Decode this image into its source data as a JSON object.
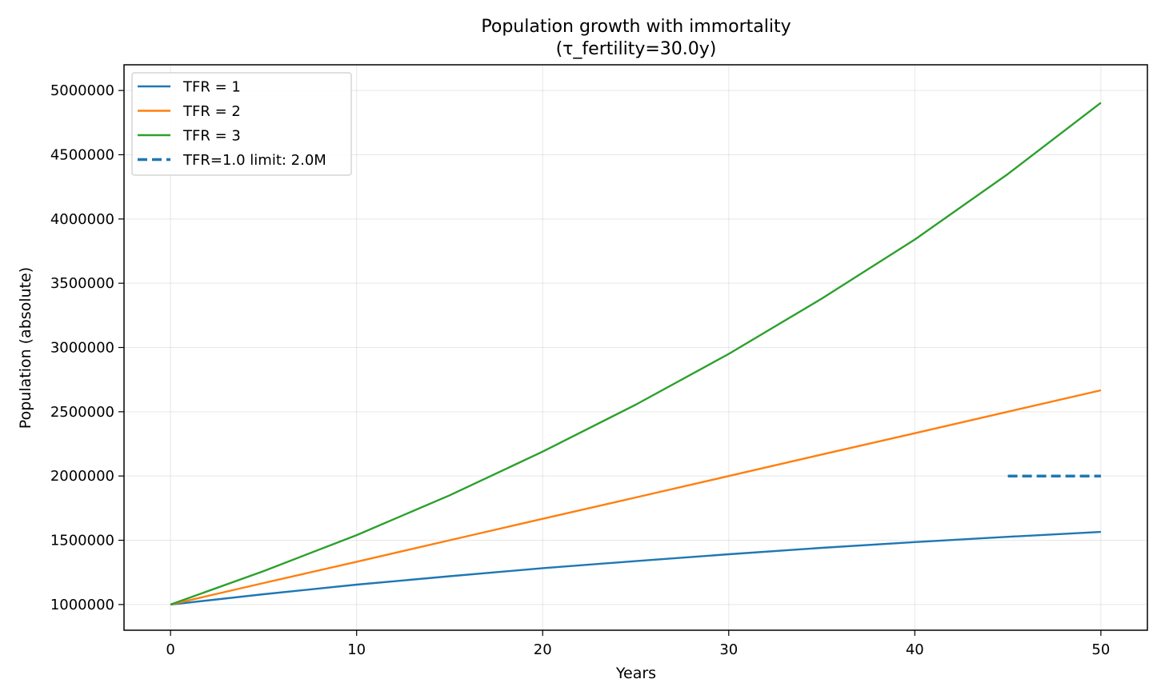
{
  "chart_data": {
    "type": "line",
    "title": "Population growth with immortality",
    "subtitle": "(τ_fertility=30.0y)",
    "xlabel": "Years",
    "ylabel": "Population (absolute)",
    "xlim": [
      -2.5,
      52.5
    ],
    "ylim": [
      800000,
      5200000
    ],
    "xticks": [
      0,
      10,
      20,
      30,
      40,
      50
    ],
    "xtick_labels": [
      "0",
      "10",
      "20",
      "30",
      "40",
      "50"
    ],
    "yticks": [
      1000000,
      1500000,
      2000000,
      2500000,
      3000000,
      3500000,
      4000000,
      4500000,
      5000000
    ],
    "ytick_labels": [
      "1000000",
      "1500000",
      "2000000",
      "2500000",
      "3000000",
      "3500000",
      "4000000",
      "4500000",
      "5000000"
    ],
    "grid": true,
    "legend_position": "top-left",
    "series": [
      {
        "name": "TFR = 1",
        "label": "TFR = 1",
        "color": "#1f77b4",
        "style": "solid",
        "x": [
          0,
          5,
          10,
          15,
          20,
          25,
          30,
          35,
          40,
          45,
          50
        ],
        "values": [
          1000000,
          1080000,
          1155000,
          1220000,
          1283000,
          1338000,
          1391000,
          1441000,
          1486000,
          1527000,
          1565000
        ]
      },
      {
        "name": "TFR = 2",
        "label": "TFR = 2",
        "color": "#ff7f0e",
        "style": "solid",
        "x": [
          0,
          5,
          10,
          15,
          20,
          25,
          30,
          35,
          40,
          45,
          50
        ],
        "values": [
          1000000,
          1167000,
          1333000,
          1500000,
          1667000,
          1833000,
          2000000,
          2167000,
          2333000,
          2500000,
          2667000
        ]
      },
      {
        "name": "TFR = 3",
        "label": "TFR = 3",
        "color": "#2ca02c",
        "style": "solid",
        "x": [
          0,
          5,
          10,
          15,
          20,
          25,
          30,
          35,
          40,
          45,
          50
        ],
        "values": [
          1000000,
          1260000,
          1540000,
          1850000,
          2190000,
          2555000,
          2950000,
          3380000,
          3840000,
          4350000,
          4905000
        ]
      },
      {
        "name": "TFR=1.0 limit: 2.0M",
        "label": "TFR=1.0 limit: 2.0M",
        "color": "#1f77b4",
        "style": "dashed",
        "x": [
          45,
          50
        ],
        "values": [
          2000000,
          2000000
        ]
      }
    ]
  }
}
